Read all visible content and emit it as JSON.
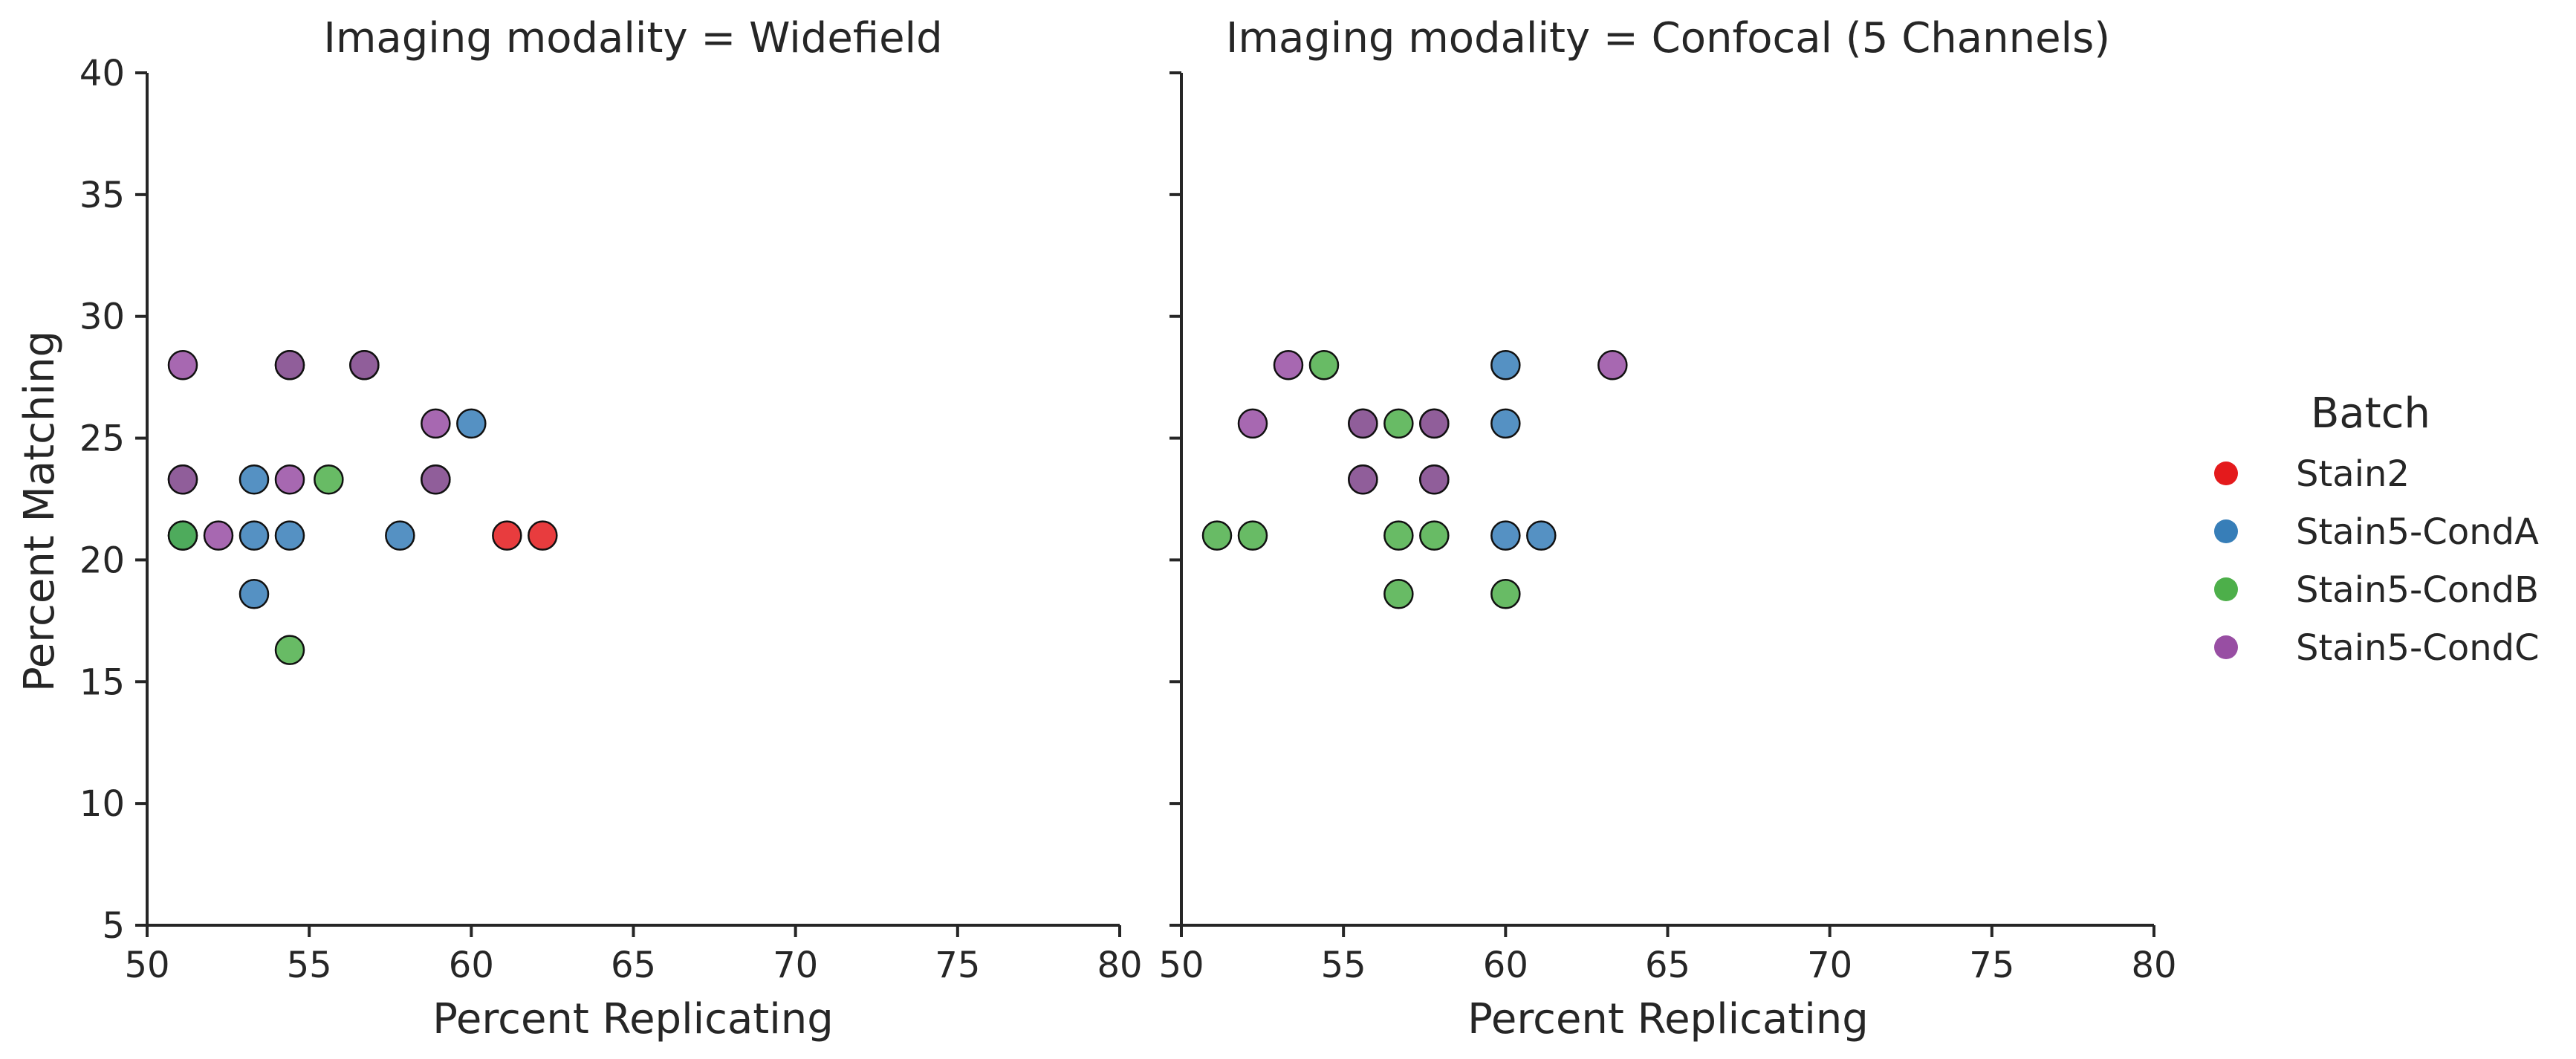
{
  "chart_data": {
    "type": "scatter",
    "facet_prefix": "Imaging modality = ",
    "xlabel": "Percent Replicating",
    "ylabel": "Percent Matching",
    "xlim": [
      50,
      80
    ],
    "ylim": [
      5,
      40
    ],
    "xticks": [
      50,
      55,
      60,
      65,
      70,
      75,
      80
    ],
    "yticks": [
      5,
      10,
      15,
      20,
      25,
      30,
      35,
      40
    ],
    "legend": {
      "title": "Batch",
      "placement": "right",
      "entries": [
        {
          "name": "Stain2",
          "color": "#e41a1c"
        },
        {
          "name": "Stain5-CondA",
          "color": "#377eb8"
        },
        {
          "name": "Stain5-CondB",
          "color": "#4daf4a"
        },
        {
          "name": "Stain5-CondC",
          "color": "#984ea3"
        }
      ]
    },
    "panels": [
      {
        "title": "Imaging modality = Widefield",
        "modality": "Widefield",
        "series": [
          {
            "name": "Stain2",
            "points": [
              [
                61.1,
                21.0
              ],
              [
                62.2,
                21.0
              ]
            ]
          },
          {
            "name": "Stain5-CondA",
            "points": [
              [
                53.3,
                23.3
              ],
              [
                53.3,
                21.0
              ],
              [
                54.4,
                21.0
              ],
              [
                53.3,
                18.6
              ],
              [
                57.8,
                21.0
              ],
              [
                60.0,
                25.6
              ],
              [
                51.1,
                21.0
              ]
            ]
          },
          {
            "name": "Stain5-CondB",
            "points": [
              [
                51.1,
                21.0
              ],
              [
                51.1,
                23.3
              ],
              [
                54.4,
                16.3
              ],
              [
                55.6,
                23.3
              ],
              [
                58.9,
                23.3
              ],
              [
                54.4,
                28.0
              ],
              [
                56.7,
                28.0
              ]
            ]
          },
          {
            "name": "Stain5-CondC",
            "points": [
              [
                51.1,
                28.0
              ],
              [
                51.1,
                23.3
              ],
              [
                52.2,
                21.0
              ],
              [
                54.4,
                28.0
              ],
              [
                54.4,
                23.3
              ],
              [
                56.7,
                28.0
              ],
              [
                58.9,
                25.6
              ],
              [
                58.9,
                23.3
              ]
            ]
          }
        ]
      },
      {
        "title": "Imaging modality = Confocal (5 Channels)",
        "modality": "Confocal (5 Channels)",
        "series": [
          {
            "name": "Stain2",
            "points": []
          },
          {
            "name": "Stain5-CondA",
            "points": [
              [
                60.0,
                28.0
              ],
              [
                60.0,
                25.6
              ],
              [
                60.0,
                21.0
              ],
              [
                61.1,
                21.0
              ]
            ]
          },
          {
            "name": "Stain5-CondB",
            "points": [
              [
                51.1,
                21.0
              ],
              [
                52.2,
                21.0
              ],
              [
                54.4,
                28.0
              ],
              [
                56.7,
                25.6
              ],
              [
                56.7,
                21.0
              ],
              [
                56.7,
                18.6
              ],
              [
                57.8,
                21.0
              ],
              [
                60.0,
                18.6
              ],
              [
                55.6,
                25.6
              ],
              [
                55.6,
                23.3
              ],
              [
                57.8,
                25.6
              ],
              [
                57.8,
                23.3
              ]
            ]
          },
          {
            "name": "Stain5-CondC",
            "points": [
              [
                52.2,
                25.6
              ],
              [
                53.3,
                28.0
              ],
              [
                55.6,
                25.6
              ],
              [
                55.6,
                23.3
              ],
              [
                57.8,
                25.6
              ],
              [
                57.8,
                23.3
              ],
              [
                63.3,
                28.0
              ]
            ]
          }
        ]
      }
    ]
  }
}
